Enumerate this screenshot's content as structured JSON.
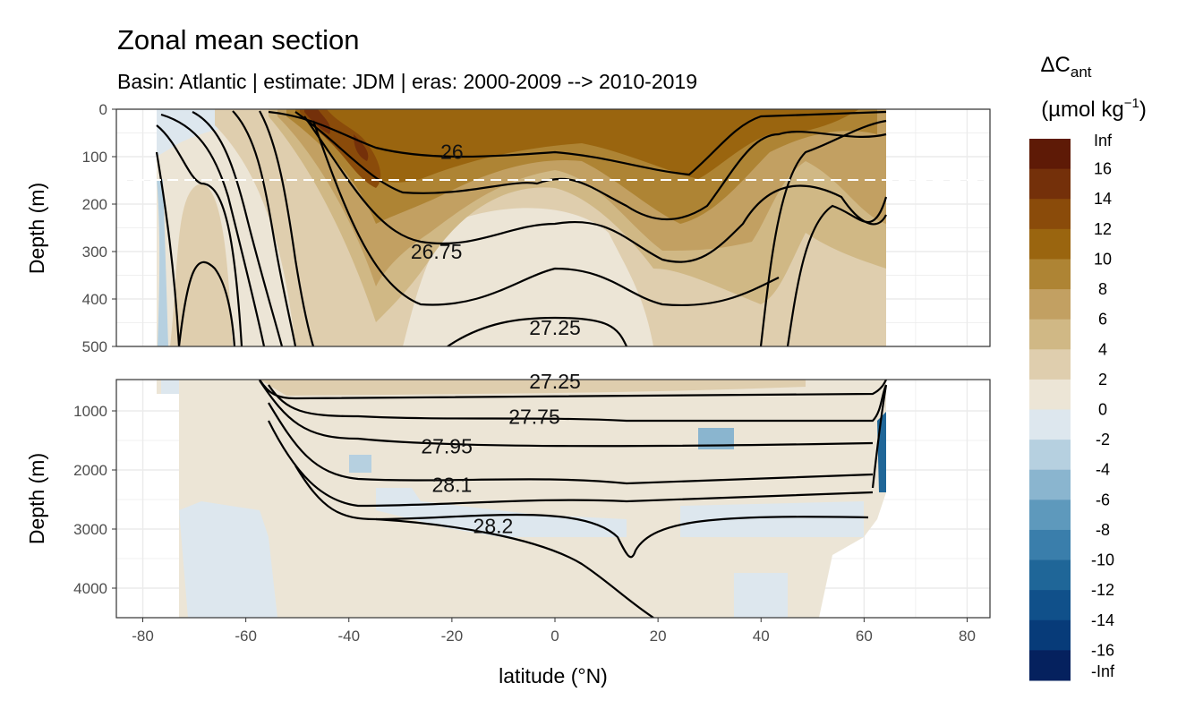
{
  "chart_data": {
    "type": "heatmap",
    "subtype": "filled contour section",
    "title": "Zonal mean section",
    "subtitle": "Basin: Atlantic | estimate: JDM  | eras: 2000-2009 --> 2010-2019",
    "xlabel": "latitude (°N)",
    "ylabel": "Depth (m)",
    "panels": [
      {
        "name": "upper",
        "ylim": [
          0,
          500
        ],
        "yticks": [
          "0",
          "100",
          "200",
          "300",
          "400",
          "500"
        ]
      },
      {
        "name": "lower",
        "ylim": [
          500,
          4500
        ],
        "yticks": [
          "1000",
          "2000",
          "3000",
          "4000"
        ]
      }
    ],
    "xlim": [
      -85,
      85
    ],
    "xticks": [
      "-80",
      "-60",
      "-40",
      "-20",
      "0",
      "20",
      "40",
      "60",
      "80"
    ],
    "reference_line_depth_m": 150,
    "legend": {
      "title_main": "ΔC",
      "title_sub": "ant",
      "units_prefix": "(µmol kg",
      "units_exp": "−1",
      "units_suffix": ")",
      "position": "right",
      "labels": [
        "Inf",
        "16",
        "14",
        "12",
        "10",
        "8",
        "6",
        "4",
        "2",
        "0",
        "-2",
        "-4",
        "-6",
        "-8",
        "-10",
        "-12",
        "-14",
        "-16",
        "-Inf"
      ],
      "colors": [
        "#5e1a06",
        "#74300a",
        "#8a4b0a",
        "#9a650f",
        "#ae8434",
        "#c2a062",
        "#d0b885",
        "#dfceae",
        "#ece5d6",
        "#dde7ee",
        "#b6d0e0",
        "#8ab5cf",
        "#5e99bc",
        "#3a7eab",
        "#1f6698",
        "#10508a",
        "#073b79",
        "#05215e"
      ]
    },
    "isopycnal_labels": [
      {
        "text": "26",
        "lat": -20,
        "depth": 90
      },
      {
        "text": "26.75",
        "lat": -23,
        "depth": 300
      },
      {
        "text": "27.25",
        "lat": 0,
        "depth": 460
      },
      {
        "text": "27.25",
        "lat": 0,
        "depth": 500
      },
      {
        "text": "27.75",
        "lat": -4,
        "depth": 1100
      },
      {
        "text": "27.95",
        "lat": -21,
        "depth": 1600
      },
      {
        "text": "28.1",
        "lat": -20,
        "depth": 2250
      },
      {
        "text": "28.2",
        "lat": -12,
        "depth": 2950
      }
    ]
  }
}
